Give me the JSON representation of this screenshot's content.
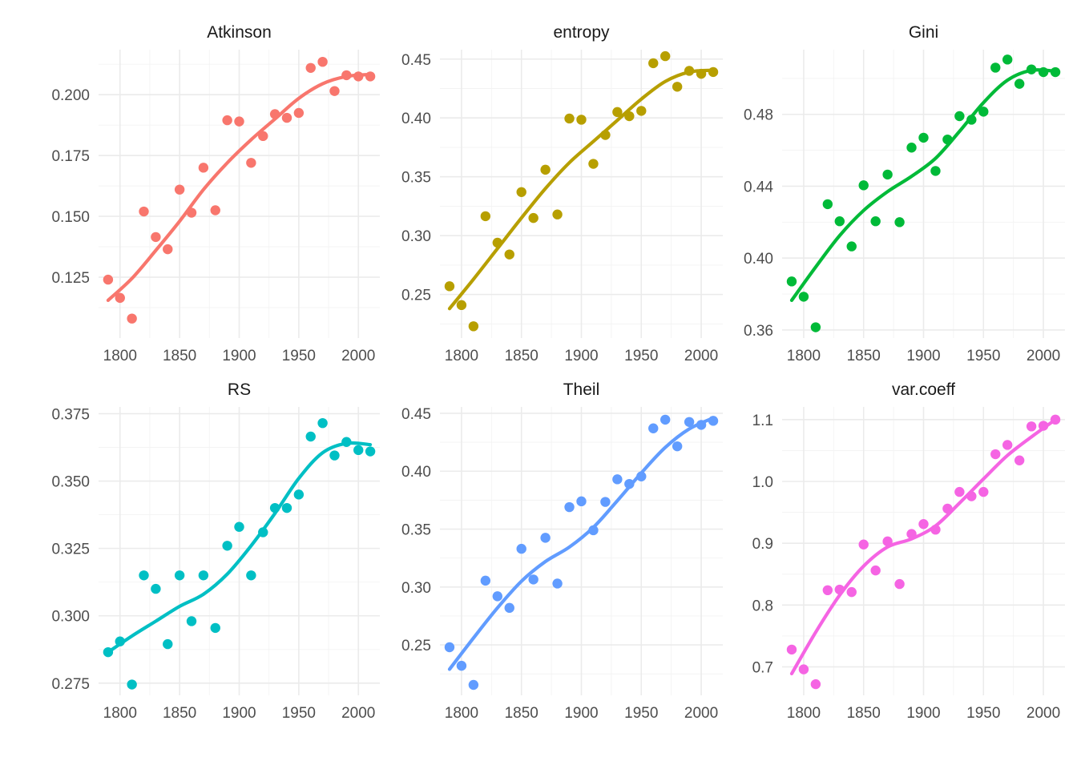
{
  "chart_data": [
    {
      "type": "scatter",
      "title": "Atkinson",
      "color": "#F8766D",
      "xlim": [
        1782,
        2018
      ],
      "ylim": [
        0.1,
        0.2185
      ],
      "xticks": [
        1800,
        1850,
        1900,
        1950,
        2000
      ],
      "yticks": [
        0.125,
        0.15,
        0.175,
        0.2
      ],
      "ytick_labels": [
        "0.125",
        "0.150",
        "0.175",
        "0.200"
      ],
      "points": [
        {
          "x": 1790,
          "y": 0.124
        },
        {
          "x": 1800,
          "y": 0.1165
        },
        {
          "x": 1810,
          "y": 0.108
        },
        {
          "x": 1820,
          "y": 0.152
        },
        {
          "x": 1830,
          "y": 0.1415
        },
        {
          "x": 1840,
          "y": 0.1365
        },
        {
          "x": 1850,
          "y": 0.161
        },
        {
          "x": 1860,
          "y": 0.1515
        },
        {
          "x": 1870,
          "y": 0.17
        },
        {
          "x": 1880,
          "y": 0.1525
        },
        {
          "x": 1890,
          "y": 0.1895
        },
        {
          "x": 1900,
          "y": 0.189
        },
        {
          "x": 1910,
          "y": 0.172
        },
        {
          "x": 1920,
          "y": 0.183
        },
        {
          "x": 1930,
          "y": 0.192
        },
        {
          "x": 1940,
          "y": 0.1905
        },
        {
          "x": 1950,
          "y": 0.1925
        },
        {
          "x": 1960,
          "y": 0.211
        },
        {
          "x": 1970,
          "y": 0.2135
        },
        {
          "x": 1980,
          "y": 0.2015
        },
        {
          "x": 1990,
          "y": 0.208
        },
        {
          "x": 2000,
          "y": 0.2075
        },
        {
          "x": 2010,
          "y": 0.2075
        }
      ],
      "trend": [
        {
          "x": 1790,
          "y": 0.1155
        },
        {
          "x": 1810,
          "y": 0.1245
        },
        {
          "x": 1830,
          "y": 0.136
        },
        {
          "x": 1850,
          "y": 0.148
        },
        {
          "x": 1870,
          "y": 0.161
        },
        {
          "x": 1890,
          "y": 0.172
        },
        {
          "x": 1910,
          "y": 0.1815
        },
        {
          "x": 1930,
          "y": 0.19
        },
        {
          "x": 1950,
          "y": 0.1985
        },
        {
          "x": 1970,
          "y": 0.2045
        },
        {
          "x": 1990,
          "y": 0.2075
        },
        {
          "x": 2010,
          "y": 0.2083
        }
      ]
    },
    {
      "type": "scatter",
      "title": "entropy",
      "color": "#B79F00",
      "xlim": [
        1782,
        2018
      ],
      "ylim": [
        0.213,
        0.458
      ],
      "xticks": [
        1800,
        1850,
        1900,
        1950,
        2000
      ],
      "yticks": [
        0.25,
        0.3,
        0.35,
        0.4,
        0.45
      ],
      "ytick_labels": [
        "0.25",
        "0.30",
        "0.35",
        "0.40",
        "0.45"
      ],
      "points": [
        {
          "x": 1790,
          "y": 0.257
        },
        {
          "x": 1800,
          "y": 0.241
        },
        {
          "x": 1810,
          "y": 0.223
        },
        {
          "x": 1820,
          "y": 0.3165
        },
        {
          "x": 1830,
          "y": 0.294
        },
        {
          "x": 1840,
          "y": 0.284
        },
        {
          "x": 1850,
          "y": 0.337
        },
        {
          "x": 1860,
          "y": 0.315
        },
        {
          "x": 1870,
          "y": 0.356
        },
        {
          "x": 1880,
          "y": 0.318
        },
        {
          "x": 1890,
          "y": 0.3995
        },
        {
          "x": 1900,
          "y": 0.3985
        },
        {
          "x": 1910,
          "y": 0.361
        },
        {
          "x": 1920,
          "y": 0.3855
        },
        {
          "x": 1930,
          "y": 0.405
        },
        {
          "x": 1940,
          "y": 0.4015
        },
        {
          "x": 1950,
          "y": 0.406
        },
        {
          "x": 1960,
          "y": 0.4465
        },
        {
          "x": 1970,
          "y": 0.4525
        },
        {
          "x": 1980,
          "y": 0.4265
        },
        {
          "x": 1990,
          "y": 0.44
        },
        {
          "x": 2000,
          "y": 0.4375
        },
        {
          "x": 2010,
          "y": 0.439
        }
      ],
      "trend": [
        {
          "x": 1790,
          "y": 0.238
        },
        {
          "x": 1810,
          "y": 0.263
        },
        {
          "x": 1830,
          "y": 0.289
        },
        {
          "x": 1850,
          "y": 0.315
        },
        {
          "x": 1870,
          "y": 0.34
        },
        {
          "x": 1890,
          "y": 0.362
        },
        {
          "x": 1910,
          "y": 0.38
        },
        {
          "x": 1930,
          "y": 0.398
        },
        {
          "x": 1950,
          "y": 0.416
        },
        {
          "x": 1970,
          "y": 0.431
        },
        {
          "x": 1990,
          "y": 0.439
        },
        {
          "x": 2010,
          "y": 0.4405
        }
      ]
    },
    {
      "type": "scatter",
      "title": "Gini",
      "color": "#00BA38",
      "xlim": [
        1782,
        2018
      ],
      "ylim": [
        0.3555,
        0.516
      ],
      "xticks": [
        1800,
        1850,
        1900,
        1950,
        2000
      ],
      "yticks": [
        0.36,
        0.4,
        0.44,
        0.48
      ],
      "ytick_labels": [
        "0.36",
        "0.40",
        "0.44",
        "0.48"
      ],
      "points": [
        {
          "x": 1790,
          "y": 0.387
        },
        {
          "x": 1800,
          "y": 0.3785
        },
        {
          "x": 1810,
          "y": 0.3615
        },
        {
          "x": 1820,
          "y": 0.43
        },
        {
          "x": 1830,
          "y": 0.4205
        },
        {
          "x": 1840,
          "y": 0.4065
        },
        {
          "x": 1850,
          "y": 0.4405
        },
        {
          "x": 1860,
          "y": 0.4205
        },
        {
          "x": 1870,
          "y": 0.4465
        },
        {
          "x": 1880,
          "y": 0.42
        },
        {
          "x": 1890,
          "y": 0.4615
        },
        {
          "x": 1900,
          "y": 0.467
        },
        {
          "x": 1910,
          "y": 0.4485
        },
        {
          "x": 1920,
          "y": 0.466
        },
        {
          "x": 1930,
          "y": 0.479
        },
        {
          "x": 1940,
          "y": 0.477
        },
        {
          "x": 1950,
          "y": 0.4815
        },
        {
          "x": 1960,
          "y": 0.506
        },
        {
          "x": 1970,
          "y": 0.5105
        },
        {
          "x": 1980,
          "y": 0.497
        },
        {
          "x": 1990,
          "y": 0.505
        },
        {
          "x": 2000,
          "y": 0.5035
        },
        {
          "x": 2010,
          "y": 0.5035
        }
      ],
      "trend": [
        {
          "x": 1790,
          "y": 0.3765
        },
        {
          "x": 1810,
          "y": 0.395
        },
        {
          "x": 1830,
          "y": 0.4125
        },
        {
          "x": 1850,
          "y": 0.4265
        },
        {
          "x": 1870,
          "y": 0.437
        },
        {
          "x": 1890,
          "y": 0.4455
        },
        {
          "x": 1910,
          "y": 0.4555
        },
        {
          "x": 1930,
          "y": 0.4705
        },
        {
          "x": 1950,
          "y": 0.4865
        },
        {
          "x": 1970,
          "y": 0.499
        },
        {
          "x": 1990,
          "y": 0.5045
        },
        {
          "x": 2010,
          "y": 0.504
        }
      ]
    },
    {
      "type": "scatter",
      "title": "RS",
      "color": "#00BFC4",
      "xlim": [
        1782,
        2018
      ],
      "ylim": [
        0.2705,
        0.3775
      ],
      "xticks": [
        1800,
        1850,
        1900,
        1950,
        2000
      ],
      "yticks": [
        0.275,
        0.3,
        0.325,
        0.35,
        0.375
      ],
      "ytick_labels": [
        "0.275",
        "0.300",
        "0.325",
        "0.350",
        "0.375"
      ],
      "points": [
        {
          "x": 1790,
          "y": 0.2865
        },
        {
          "x": 1800,
          "y": 0.2905
        },
        {
          "x": 1810,
          "y": 0.2745
        },
        {
          "x": 1820,
          "y": 0.315
        },
        {
          "x": 1830,
          "y": 0.31
        },
        {
          "x": 1840,
          "y": 0.2895
        },
        {
          "x": 1850,
          "y": 0.315
        },
        {
          "x": 1860,
          "y": 0.298
        },
        {
          "x": 1870,
          "y": 0.315
        },
        {
          "x": 1880,
          "y": 0.2955
        },
        {
          "x": 1890,
          "y": 0.326
        },
        {
          "x": 1900,
          "y": 0.333
        },
        {
          "x": 1910,
          "y": 0.315
        },
        {
          "x": 1920,
          "y": 0.331
        },
        {
          "x": 1930,
          "y": 0.34
        },
        {
          "x": 1940,
          "y": 0.34
        },
        {
          "x": 1950,
          "y": 0.345
        },
        {
          "x": 1960,
          "y": 0.3665
        },
        {
          "x": 1970,
          "y": 0.3715
        },
        {
          "x": 1980,
          "y": 0.3595
        },
        {
          "x": 1990,
          "y": 0.3645
        },
        {
          "x": 2000,
          "y": 0.3615
        },
        {
          "x": 2010,
          "y": 0.361
        }
      ],
      "trend": [
        {
          "x": 1790,
          "y": 0.2865
        },
        {
          "x": 1810,
          "y": 0.2925
        },
        {
          "x": 1830,
          "y": 0.298
        },
        {
          "x": 1850,
          "y": 0.3035
        },
        {
          "x": 1870,
          "y": 0.308
        },
        {
          "x": 1890,
          "y": 0.3155
        },
        {
          "x": 1910,
          "y": 0.326
        },
        {
          "x": 1930,
          "y": 0.338
        },
        {
          "x": 1950,
          "y": 0.351
        },
        {
          "x": 1970,
          "y": 0.3605
        },
        {
          "x": 1990,
          "y": 0.364
        },
        {
          "x": 2010,
          "y": 0.3635
        }
      ]
    },
    {
      "type": "scatter",
      "title": "Theil",
      "color": "#619CFF",
      "xlim": [
        1782,
        2018
      ],
      "ylim": [
        0.2065,
        0.4555
      ],
      "xticks": [
        1800,
        1850,
        1900,
        1950,
        2000
      ],
      "yticks": [
        0.25,
        0.3,
        0.35,
        0.4,
        0.45
      ],
      "ytick_labels": [
        "0.25",
        "0.30",
        "0.35",
        "0.40",
        "0.45"
      ],
      "points": [
        {
          "x": 1790,
          "y": 0.248
        },
        {
          "x": 1800,
          "y": 0.232
        },
        {
          "x": 1810,
          "y": 0.2155
        },
        {
          "x": 1820,
          "y": 0.3055
        },
        {
          "x": 1830,
          "y": 0.292
        },
        {
          "x": 1840,
          "y": 0.282
        },
        {
          "x": 1850,
          "y": 0.333
        },
        {
          "x": 1860,
          "y": 0.3065
        },
        {
          "x": 1870,
          "y": 0.3425
        },
        {
          "x": 1880,
          "y": 0.303
        },
        {
          "x": 1890,
          "y": 0.369
        },
        {
          "x": 1900,
          "y": 0.374
        },
        {
          "x": 1910,
          "y": 0.349
        },
        {
          "x": 1920,
          "y": 0.3735
        },
        {
          "x": 1930,
          "y": 0.393
        },
        {
          "x": 1940,
          "y": 0.389
        },
        {
          "x": 1950,
          "y": 0.3955
        },
        {
          "x": 1960,
          "y": 0.437
        },
        {
          "x": 1970,
          "y": 0.4445
        },
        {
          "x": 1980,
          "y": 0.4215
        },
        {
          "x": 1990,
          "y": 0.4425
        },
        {
          "x": 2000,
          "y": 0.44
        },
        {
          "x": 2010,
          "y": 0.4435
        }
      ],
      "trend": [
        {
          "x": 1790,
          "y": 0.229
        },
        {
          "x": 1810,
          "y": 0.256
        },
        {
          "x": 1830,
          "y": 0.282
        },
        {
          "x": 1850,
          "y": 0.305
        },
        {
          "x": 1870,
          "y": 0.322
        },
        {
          "x": 1890,
          "y": 0.3345
        },
        {
          "x": 1910,
          "y": 0.3515
        },
        {
          "x": 1930,
          "y": 0.3745
        },
        {
          "x": 1950,
          "y": 0.3985
        },
        {
          "x": 1970,
          "y": 0.4205
        },
        {
          "x": 1990,
          "y": 0.4365
        },
        {
          "x": 2010,
          "y": 0.446
        }
      ]
    },
    {
      "type": "scatter",
      "title": "var.coeff",
      "color": "#F564E3",
      "xlim": [
        1782,
        2018
      ],
      "ylim": [
        0.654,
        1.1205
      ],
      "xticks": [
        1800,
        1850,
        1900,
        1950,
        2000
      ],
      "yticks": [
        0.7,
        0.8,
        0.9,
        1.0,
        1.1
      ],
      "ytick_labels": [
        "0.7",
        "0.8",
        "0.9",
        "1.0",
        "1.1"
      ],
      "points": [
        {
          "x": 1790,
          "y": 0.728
        },
        {
          "x": 1800,
          "y": 0.696
        },
        {
          "x": 1810,
          "y": 0.672
        },
        {
          "x": 1820,
          "y": 0.824
        },
        {
          "x": 1830,
          "y": 0.825
        },
        {
          "x": 1840,
          "y": 0.821
        },
        {
          "x": 1850,
          "y": 0.898
        },
        {
          "x": 1860,
          "y": 0.856
        },
        {
          "x": 1870,
          "y": 0.903
        },
        {
          "x": 1880,
          "y": 0.834
        },
        {
          "x": 1890,
          "y": 0.915
        },
        {
          "x": 1900,
          "y": 0.931
        },
        {
          "x": 1910,
          "y": 0.922
        },
        {
          "x": 1920,
          "y": 0.956
        },
        {
          "x": 1930,
          "y": 0.983
        },
        {
          "x": 1940,
          "y": 0.976
        },
        {
          "x": 1950,
          "y": 0.983
        },
        {
          "x": 1960,
          "y": 1.044
        },
        {
          "x": 1970,
          "y": 1.059
        },
        {
          "x": 1980,
          "y": 1.034
        },
        {
          "x": 1990,
          "y": 1.089
        },
        {
          "x": 2000,
          "y": 1.09
        },
        {
          "x": 2010,
          "y": 1.1
        }
      ],
      "trend": [
        {
          "x": 1790,
          "y": 0.689
        },
        {
          "x": 1810,
          "y": 0.756
        },
        {
          "x": 1830,
          "y": 0.816
        },
        {
          "x": 1850,
          "y": 0.863
        },
        {
          "x": 1870,
          "y": 0.894
        },
        {
          "x": 1890,
          "y": 0.907
        },
        {
          "x": 1910,
          "y": 0.928
        },
        {
          "x": 1930,
          "y": 0.965
        },
        {
          "x": 1950,
          "y": 1.004
        },
        {
          "x": 1970,
          "y": 1.042
        },
        {
          "x": 1990,
          "y": 1.072
        },
        {
          "x": 2010,
          "y": 1.1
        }
      ]
    }
  ]
}
